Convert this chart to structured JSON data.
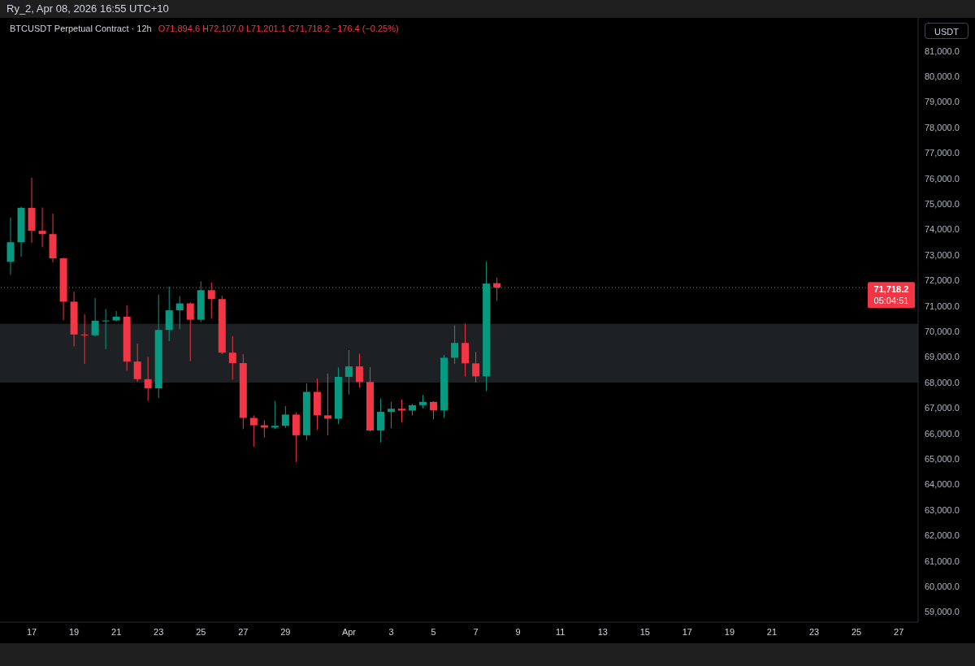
{
  "chart_data": {
    "type": "candlestick",
    "title": "BTCUSDT Perpetual Contract · 12h",
    "subtitle": "O71,894.6 H72,107.0 L71,201.1 C71,718.2 −176.4 (−0.25%)",
    "ylabel": "USDT",
    "annotations": [
      "Ry_2, Apr 08, 2026 16:55 UTC+10",
      "05:04:51"
    ],
    "x": [
      "2026-03-16T00:00",
      "2026-03-16T12:00",
      "2026-03-17T00:00",
      "2026-03-17T12:00",
      "2026-03-18T00:00",
      "2026-03-18T12:00",
      "2026-03-19T00:00",
      "2026-03-19T12:00",
      "2026-03-20T00:00",
      "2026-03-20T12:00",
      "2026-03-21T00:00",
      "2026-03-21T12:00",
      "2026-03-22T00:00",
      "2026-03-22T12:00",
      "2026-03-23T00:00",
      "2026-03-23T12:00",
      "2026-03-24T00:00",
      "2026-03-24T12:00",
      "2026-03-25T00:00",
      "2026-03-25T12:00",
      "2026-03-26T00:00",
      "2026-03-26T12:00",
      "2026-03-27T00:00",
      "2026-03-27T12:00",
      "2026-03-28T00:00",
      "2026-03-28T12:00",
      "2026-03-29T00:00",
      "2026-03-29T12:00",
      "2026-03-30T00:00",
      "2026-03-30T12:00",
      "2026-03-31T00:00",
      "2026-03-31T12:00",
      "2026-04-01T00:00",
      "2026-04-01T12:00",
      "2026-04-02T00:00",
      "2026-04-02T12:00",
      "2026-04-03T00:00",
      "2026-04-03T12:00",
      "2026-04-04T00:00",
      "2026-04-04T12:00",
      "2026-04-05T00:00",
      "2026-04-05T12:00",
      "2026-04-06T00:00",
      "2026-04-06T12:00",
      "2026-04-07T00:00",
      "2026-04-07T12:00",
      "2026-04-08T00:00"
    ],
    "ohlc": [
      [
        72730,
        74470,
        72220,
        73500
      ],
      [
        73500,
        74900,
        72930,
        74850
      ],
      [
        74850,
        76030,
        73480,
        73950
      ],
      [
        73950,
        74860,
        73310,
        73820
      ],
      [
        73820,
        74620,
        72710,
        72870
      ],
      [
        72870,
        72900,
        70440,
        71170
      ],
      [
        71170,
        71560,
        69420,
        69880
      ],
      [
        69880,
        70670,
        68730,
        69850
      ],
      [
        69850,
        71310,
        69800,
        70420
      ],
      [
        70400,
        70880,
        69310,
        70430
      ],
      [
        70430,
        70800,
        70400,
        70580
      ],
      [
        70580,
        71020,
        68460,
        68820
      ],
      [
        68820,
        69530,
        68040,
        68130
      ],
      [
        68130,
        69000,
        67280,
        67770
      ],
      [
        67770,
        71450,
        67390,
        70060
      ],
      [
        70060,
        71760,
        69620,
        70830
      ],
      [
        70830,
        71380,
        70090,
        71100
      ],
      [
        71100,
        71150,
        68840,
        70460
      ],
      [
        70460,
        71970,
        70370,
        71620
      ],
      [
        71620,
        71920,
        70500,
        71270
      ],
      [
        71270,
        71400,
        69110,
        69170
      ],
      [
        69170,
        69810,
        68110,
        68760
      ],
      [
        68760,
        69110,
        66170,
        66610
      ],
      [
        66610,
        66710,
        65480,
        66320
      ],
      [
        66320,
        66520,
        65840,
        66230
      ],
      [
        66230,
        67280,
        66170,
        66300
      ],
      [
        66300,
        67070,
        66220,
        66740
      ],
      [
        66740,
        66830,
        64880,
        65930
      ],
      [
        65930,
        67960,
        65730,
        67630
      ],
      [
        67630,
        68150,
        66150,
        66710
      ],
      [
        66710,
        68350,
        65930,
        66580
      ],
      [
        66580,
        68590,
        66370,
        68220
      ],
      [
        68220,
        69270,
        67530,
        68630
      ],
      [
        68630,
        69130,
        67800,
        68020
      ],
      [
        68020,
        68600,
        66080,
        66120
      ],
      [
        66120,
        67370,
        65650,
        66850
      ],
      [
        66850,
        67240,
        66200,
        66970
      ],
      [
        66970,
        67340,
        66430,
        66900
      ],
      [
        66900,
        67150,
        66710,
        67110
      ],
      [
        67110,
        67510,
        66990,
        67240
      ],
      [
        67240,
        67260,
        66550,
        66910
      ],
      [
        66910,
        69080,
        66610,
        68970
      ],
      [
        68970,
        70240,
        68730,
        69550
      ],
      [
        69550,
        70310,
        68240,
        68750
      ],
      [
        68750,
        69200,
        68000,
        68240
      ],
      [
        68240,
        72740,
        67660,
        71880
      ],
      [
        71894.6,
        72107.0,
        71201.1,
        71718.2
      ]
    ],
    "colors": [
      "#089981",
      "#089981",
      "#f23645",
      "#f23645",
      "#f23645",
      "#f23645",
      "#f23645",
      "#f23645",
      "#089981",
      "#089981",
      "#089981",
      "#f23645",
      "#f23645",
      "#f23645",
      "#089981",
      "#089981",
      "#089981",
      "#f23645",
      "#089981",
      "#f23645",
      "#f23645",
      "#f23645",
      "#f23645",
      "#f23645",
      "#f23645",
      "#089981",
      "#089981",
      "#f23645",
      "#089981",
      "#f23645",
      "#f23645",
      "#089981",
      "#089981",
      "#f23645",
      "#f23645",
      "#089981",
      "#089981",
      "#f23645",
      "#089981",
      "#089981",
      "#f23645",
      "#089981",
      "#089981",
      "#f23645",
      "#f23645",
      "#089981",
      "#f23645"
    ],
    "xlim": [
      "2026-03-15T12:00",
      "2026-04-27T22:00"
    ],
    "xticks": [
      {
        "value": "2026-03-17",
        "label": "17"
      },
      {
        "value": "2026-03-19",
        "label": "19"
      },
      {
        "value": "2026-03-21",
        "label": "21"
      },
      {
        "value": "2026-03-23",
        "label": "23"
      },
      {
        "value": "2026-03-25",
        "label": "25"
      },
      {
        "value": "2026-03-27",
        "label": "27"
      },
      {
        "value": "2026-03-29",
        "label": "29"
      },
      {
        "value": "2026-04-01",
        "label": "Apr"
      },
      {
        "value": "2026-04-03",
        "label": "3"
      },
      {
        "value": "2026-04-05",
        "label": "5"
      },
      {
        "value": "2026-04-07",
        "label": "7"
      },
      {
        "value": "2026-04-09",
        "label": "9"
      },
      {
        "value": "2026-04-11",
        "label": "11"
      },
      {
        "value": "2026-04-13",
        "label": "13"
      },
      {
        "value": "2026-04-15",
        "label": "15"
      },
      {
        "value": "2026-04-17",
        "label": "17"
      },
      {
        "value": "2026-04-19",
        "label": "19"
      },
      {
        "value": "2026-04-21",
        "label": "21"
      },
      {
        "value": "2026-04-23",
        "label": "23"
      },
      {
        "value": "2026-04-25",
        "label": "25"
      },
      {
        "value": "2026-04-27",
        "label": "27"
      }
    ],
    "ylim": [
      58600,
      82300
    ],
    "yticks": [
      {
        "value": 59000,
        "label": "59,000.0"
      },
      {
        "value": 60000,
        "label": "60,000.0"
      },
      {
        "value": 61000,
        "label": "61,000.0"
      },
      {
        "value": 62000,
        "label": "62,000.0"
      },
      {
        "value": 63000,
        "label": "63,000.0"
      },
      {
        "value": 64000,
        "label": "64,000.0"
      },
      {
        "value": 65000,
        "label": "65,000.0"
      },
      {
        "value": 66000,
        "label": "66,000.0"
      },
      {
        "value": 67000,
        "label": "67,000.0"
      },
      {
        "value": 68000,
        "label": "68,000.0"
      },
      {
        "value": 69000,
        "label": "69,000.0"
      },
      {
        "value": 70000,
        "label": "70,000.0"
      },
      {
        "value": 71000,
        "label": "71,000.0"
      },
      {
        "value": 72000,
        "label": "72,000.0"
      },
      {
        "value": 73000,
        "label": "73,000.0"
      },
      {
        "value": 74000,
        "label": "74,000.0"
      },
      {
        "value": 75000,
        "label": "75,000.0"
      },
      {
        "value": 76000,
        "label": "76,000.0"
      },
      {
        "value": 77000,
        "label": "77,000.0"
      },
      {
        "value": 78000,
        "label": "78,000.0"
      },
      {
        "value": 79000,
        "label": "79,000.0"
      },
      {
        "value": 80000,
        "label": "80,000.0"
      },
      {
        "value": 81000,
        "label": "81,000.0"
      }
    ],
    "ref_lines": [
      {
        "axis": "y",
        "value": 71718.2,
        "label": "71,718.2",
        "color": "#f23645",
        "line_style": "dotted"
      }
    ],
    "bands": [
      {
        "axis": "y",
        "from": 68000,
        "to": 70300,
        "color": "#1e2124"
      }
    ]
  }
}
